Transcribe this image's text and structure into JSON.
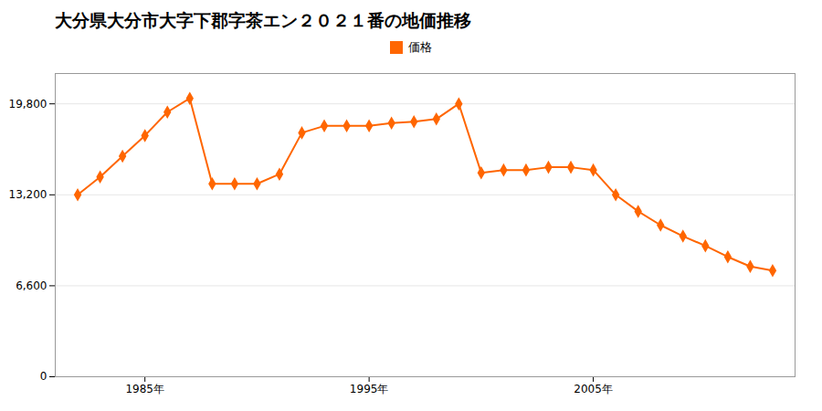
{
  "chart_data": {
    "type": "line",
    "title": "大分県大分市大字下郡字茶エン２０２１番の地価推移",
    "x": [
      1982,
      1983,
      1984,
      1985,
      1986,
      1987,
      1988,
      1989,
      1990,
      1991,
      1992,
      1993,
      1994,
      1995,
      1996,
      1997,
      1998,
      1999,
      2000,
      2001,
      2002,
      2003,
      2004,
      2005,
      2006,
      2007,
      2008,
      2009,
      2010,
      2011,
      2012,
      2013
    ],
    "series": [
      {
        "name": "価格",
        "color": "#FF6600",
        "marker": "diamond",
        "values": [
          13200,
          14500,
          16000,
          17500,
          19200,
          20200,
          14000,
          14000,
          14000,
          14700,
          17700,
          18200,
          18200,
          18200,
          18400,
          18500,
          18700,
          19800,
          14800,
          15000,
          15000,
          15200,
          15200,
          15000,
          13200,
          12000,
          11000,
          10200,
          9500,
          8700,
          8000,
          7700
        ]
      }
    ],
    "xlim": [
      1981,
      2014
    ],
    "xticks": [
      {
        "value": 1985,
        "label": "1985年"
      },
      {
        "value": 1995,
        "label": "1995年"
      },
      {
        "value": 2005,
        "label": "2005年"
      }
    ],
    "ylim": [
      0,
      22000
    ],
    "yticks": [
      0,
      {
        "value": 6600,
        "label": "6,600"
      },
      {
        "value": 13200,
        "label": "13,200"
      },
      {
        "value": 19800,
        "label": "19,800"
      }
    ],
    "grid": true,
    "legend": "top"
  }
}
